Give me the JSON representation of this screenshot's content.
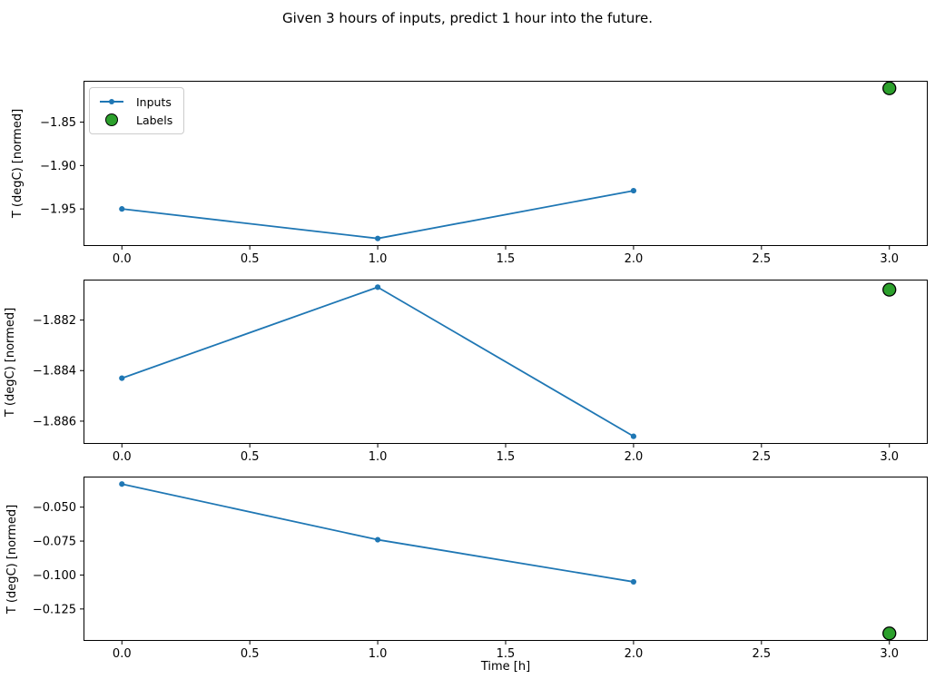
{
  "figure": {
    "title": "Given 3 hours of inputs, predict 1 hour into the future.",
    "xlabel": "Time [h]",
    "legend": {
      "inputs_label": "Inputs",
      "labels_label": "Labels"
    },
    "colors": {
      "inputs_line": "#1f77b4",
      "labels_fill": "#2ca02c",
      "labels_edge": "#000000",
      "spine": "#000000",
      "tick_text": "#000000",
      "legend_border": "#cccccc"
    }
  },
  "chart_data": [
    {
      "type": "line",
      "ylabel": "T (degC) [normed]",
      "x": [
        0,
        1,
        2
      ],
      "series": [
        {
          "name": "Inputs",
          "values": [
            -1.95,
            -1.984,
            -1.929
          ]
        }
      ],
      "scatter": {
        "name": "Labels",
        "x": 3,
        "y": -1.811
      },
      "xlim": [
        -0.15,
        3.15
      ],
      "ylim": [
        -1.9927,
        -1.8024
      ],
      "grid": false,
      "legend_position": "upper left",
      "xticks": [
        {
          "v": 0,
          "label": "0.0"
        },
        {
          "v": 0.5,
          "label": "0.5"
        },
        {
          "v": 1,
          "label": "1.0"
        },
        {
          "v": 1.5,
          "label": "1.5"
        },
        {
          "v": 2,
          "label": "2.0"
        },
        {
          "v": 2.5,
          "label": "2.5"
        },
        {
          "v": 3,
          "label": "3.0"
        }
      ],
      "yticks": [
        {
          "v": -1.85,
          "label": "−1.85"
        },
        {
          "v": -1.9,
          "label": "−1.90"
        },
        {
          "v": -1.95,
          "label": "−1.95"
        }
      ]
    },
    {
      "type": "line",
      "ylabel": "T (degC) [normed]",
      "x": [
        0,
        1,
        2
      ],
      "series": [
        {
          "name": "Inputs",
          "values": [
            -1.8843,
            -1.8807,
            -1.8866
          ]
        }
      ],
      "scatter": {
        "name": "Labels",
        "x": 3,
        "y": -1.8808
      },
      "xlim": [
        -0.15,
        3.15
      ],
      "ylim": [
        -1.8869,
        -1.8804
      ],
      "grid": false,
      "legend_position": "none",
      "xticks": [
        {
          "v": 0,
          "label": "0.0"
        },
        {
          "v": 0.5,
          "label": "0.5"
        },
        {
          "v": 1,
          "label": "1.0"
        },
        {
          "v": 1.5,
          "label": "1.5"
        },
        {
          "v": 2,
          "label": "2.0"
        },
        {
          "v": 2.5,
          "label": "2.5"
        },
        {
          "v": 3,
          "label": "3.0"
        }
      ],
      "yticks": [
        {
          "v": -1.882,
          "label": "−1.882"
        },
        {
          "v": -1.884,
          "label": "−1.884"
        },
        {
          "v": -1.886,
          "label": "−1.886"
        }
      ]
    },
    {
      "type": "line",
      "ylabel": "T (degC) [normed]",
      "xlabel": "Time [h]",
      "x": [
        0,
        1,
        2
      ],
      "series": [
        {
          "name": "Inputs",
          "values": [
            -0.033,
            -0.074,
            -0.105
          ]
        }
      ],
      "scatter": {
        "name": "Labels",
        "x": 3,
        "y": -0.143
      },
      "xlim": [
        -0.15,
        3.15
      ],
      "ylim": [
        -0.1485,
        -0.0275
      ],
      "grid": false,
      "legend_position": "none",
      "xticks": [
        {
          "v": 0,
          "label": "0.0"
        },
        {
          "v": 0.5,
          "label": "0.5"
        },
        {
          "v": 1,
          "label": "1.0"
        },
        {
          "v": 1.5,
          "label": "1.5"
        },
        {
          "v": 2,
          "label": "2.0"
        },
        {
          "v": 2.5,
          "label": "2.5"
        },
        {
          "v": 3,
          "label": "3.0"
        }
      ],
      "yticks": [
        {
          "v": -0.05,
          "label": "−0.050"
        },
        {
          "v": -0.075,
          "label": "−0.075"
        },
        {
          "v": -0.1,
          "label": "−0.100"
        },
        {
          "v": -0.125,
          "label": "−0.125"
        }
      ]
    }
  ]
}
